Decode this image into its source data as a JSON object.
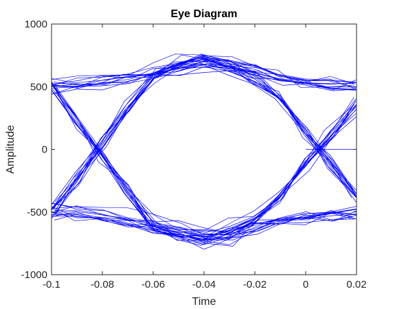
{
  "chart_data": {
    "type": "line",
    "title": "Eye Diagram",
    "xlabel": "Time",
    "ylabel": "Amplitude",
    "xlim": [
      -0.1,
      0.02
    ],
    "ylim": [
      -1000,
      1000
    ],
    "xticks": [
      -0.1,
      -0.08,
      -0.06,
      -0.04,
      -0.02,
      0,
      0.02
    ],
    "xtick_labels": [
      "-0.1",
      "-0.08",
      "-0.06",
      "-0.04",
      "-0.02",
      "0",
      "0.02"
    ],
    "yticks": [
      -1000,
      -500,
      0,
      500,
      1000
    ],
    "ytick_labels": [
      "-1000",
      "-500",
      "0",
      "500",
      "1000"
    ],
    "grid": false,
    "colors": {
      "trace": "#0000ff",
      "axes": "#262626",
      "background": "#ffffff"
    },
    "trace_templates": {
      "x": [
        -0.1,
        -0.09,
        -0.08,
        -0.07,
        -0.06,
        -0.05,
        -0.04,
        -0.03,
        -0.02,
        -0.01,
        0.0,
        0.01,
        0.02
      ],
      "high_high": [
        500,
        510,
        530,
        570,
        610,
        660,
        700,
        680,
        630,
        570,
        530,
        510,
        500
      ],
      "low_low": [
        -500,
        -510,
        -530,
        -570,
        -610,
        -660,
        -700,
        -680,
        -630,
        -570,
        -530,
        -510,
        -500
      ],
      "rise": [
        -500,
        -230,
        50,
        330,
        600,
        660,
        700,
        680,
        620,
        560,
        520,
        510,
        500
      ],
      "fall": [
        500,
        230,
        -50,
        -330,
        -600,
        -660,
        -700,
        -680,
        -620,
        -560,
        -520,
        -510,
        -500
      ],
      "high_fall": [
        500,
        510,
        530,
        570,
        610,
        660,
        700,
        650,
        560,
        390,
        130,
        -120,
        -370
      ],
      "low_rise": [
        -500,
        -510,
        -530,
        -570,
        -610,
        -660,
        -700,
        -650,
        -560,
        -390,
        -130,
        120,
        370
      ],
      "rise_fall": [
        -500,
        -230,
        50,
        330,
        600,
        660,
        700,
        650,
        560,
        390,
        130,
        -120,
        -370
      ],
      "fall_rise": [
        500,
        230,
        -50,
        -330,
        -600,
        -660,
        -700,
        -650,
        -560,
        -390,
        -130,
        120,
        370
      ]
    },
    "zero_segment": {
      "x": [
        0,
        0.02
      ],
      "y": [
        0,
        0
      ]
    }
  }
}
